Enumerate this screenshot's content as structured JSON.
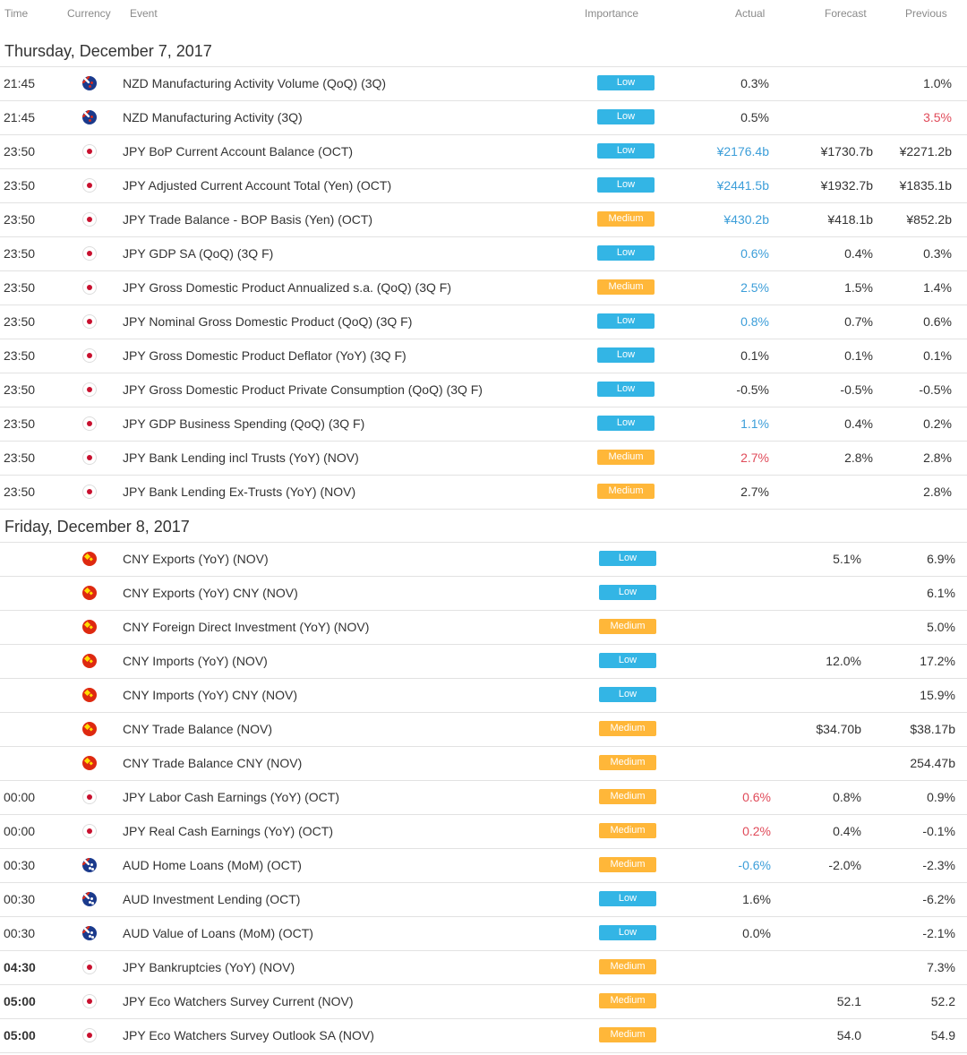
{
  "header": {
    "time": "Time",
    "currency": "Currency",
    "event": "Event",
    "importance": "Importance",
    "actual": "Actual",
    "forecast": "Forecast",
    "previous": "Previous"
  },
  "colors": {
    "low_badge": "#33b5e5",
    "medium_badge": "#ffb739",
    "better_than_forecast": "#3c9ed9",
    "worse_than_forecast": "#e04b5a"
  },
  "days": [
    {
      "label": "Thursday, December 7, 2017",
      "events": [
        {
          "time": "21:45",
          "bold": false,
          "currency": "nzd",
          "flag_icon": "nzd-flag-icon",
          "event": "NZD Manufacturing Activity Volume (QoQ) (3Q)",
          "importance": "Low",
          "actual": "0.3%",
          "actual_color": "",
          "forecast": "",
          "previous": "1.0%",
          "previous_color": ""
        },
        {
          "time": "21:45",
          "bold": false,
          "currency": "nzd",
          "flag_icon": "nzd-flag-icon",
          "event": "NZD Manufacturing Activity (3Q)",
          "importance": "Low",
          "actual": "0.5%",
          "actual_color": "",
          "forecast": "",
          "previous": "3.5%",
          "previous_color": "red"
        },
        {
          "time": "23:50",
          "bold": false,
          "currency": "jpy",
          "flag_icon": "jpy-flag-icon",
          "event": "JPY BoP Current Account Balance (OCT)",
          "importance": "Low",
          "actual": "¥2176.4b",
          "actual_color": "blue",
          "forecast": "¥1730.7b",
          "previous": "¥2271.2b",
          "previous_color": ""
        },
        {
          "time": "23:50",
          "bold": false,
          "currency": "jpy",
          "flag_icon": "jpy-flag-icon",
          "event": "JPY Adjusted Current Account Total (Yen) (OCT)",
          "importance": "Low",
          "actual": "¥2441.5b",
          "actual_color": "blue",
          "forecast": "¥1932.7b",
          "previous": "¥1835.1b",
          "previous_color": ""
        },
        {
          "time": "23:50",
          "bold": false,
          "currency": "jpy",
          "flag_icon": "jpy-flag-icon",
          "event": "JPY Trade Balance - BOP Basis (Yen) (OCT)",
          "importance": "Medium",
          "actual": "¥430.2b",
          "actual_color": "blue",
          "forecast": "¥418.1b",
          "previous": "¥852.2b",
          "previous_color": ""
        },
        {
          "time": "23:50",
          "bold": false,
          "currency": "jpy",
          "flag_icon": "jpy-flag-icon",
          "event": "JPY GDP SA (QoQ) (3Q F)",
          "importance": "Low",
          "actual": "0.6%",
          "actual_color": "blue",
          "forecast": "0.4%",
          "previous": "0.3%",
          "previous_color": ""
        },
        {
          "time": "23:50",
          "bold": false,
          "currency": "jpy",
          "flag_icon": "jpy-flag-icon",
          "event": "JPY Gross Domestic Product Annualized s.a. (QoQ) (3Q F)",
          "importance": "Medium",
          "actual": "2.5%",
          "actual_color": "blue",
          "forecast": "1.5%",
          "previous": "1.4%",
          "previous_color": ""
        },
        {
          "time": "23:50",
          "bold": false,
          "currency": "jpy",
          "flag_icon": "jpy-flag-icon",
          "event": "JPY Nominal Gross Domestic Product (QoQ) (3Q F)",
          "importance": "Low",
          "actual": "0.8%",
          "actual_color": "blue",
          "forecast": "0.7%",
          "previous": "0.6%",
          "previous_color": ""
        },
        {
          "time": "23:50",
          "bold": false,
          "currency": "jpy",
          "flag_icon": "jpy-flag-icon",
          "event": "JPY Gross Domestic Product Deflator (YoY) (3Q F)",
          "importance": "Low",
          "actual": "0.1%",
          "actual_color": "",
          "forecast": "0.1%",
          "previous": "0.1%",
          "previous_color": ""
        },
        {
          "time": "23:50",
          "bold": false,
          "currency": "jpy",
          "flag_icon": "jpy-flag-icon",
          "event": "JPY Gross Domestic Product Private Consumption (QoQ) (3Q F)",
          "importance": "Low",
          "actual": "-0.5%",
          "actual_color": "",
          "forecast": "-0.5%",
          "previous": "-0.5%",
          "previous_color": ""
        },
        {
          "time": "23:50",
          "bold": false,
          "currency": "jpy",
          "flag_icon": "jpy-flag-icon",
          "event": "JPY GDP Business Spending (QoQ) (3Q F)",
          "importance": "Low",
          "actual": "1.1%",
          "actual_color": "blue",
          "forecast": "0.4%",
          "previous": "0.2%",
          "previous_color": ""
        },
        {
          "time": "23:50",
          "bold": false,
          "currency": "jpy",
          "flag_icon": "jpy-flag-icon",
          "event": "JPY Bank Lending incl Trusts (YoY) (NOV)",
          "importance": "Medium",
          "actual": "2.7%",
          "actual_color": "red",
          "forecast": "2.8%",
          "previous": "2.8%",
          "previous_color": ""
        },
        {
          "time": "23:50",
          "bold": false,
          "currency": "jpy",
          "flag_icon": "jpy-flag-icon",
          "event": "JPY Bank Lending Ex-Trusts (YoY) (NOV)",
          "importance": "Medium",
          "actual": "2.7%",
          "actual_color": "",
          "forecast": "",
          "previous": "2.8%",
          "previous_color": ""
        }
      ]
    },
    {
      "label": "Friday, December 8, 2017",
      "events": [
        {
          "time": "",
          "bold": false,
          "currency": "cny",
          "flag_icon": "cny-flag-icon",
          "event": "CNY Exports (YoY) (NOV)",
          "importance": "Low",
          "actual": "",
          "actual_color": "",
          "forecast": "5.1%",
          "previous": "6.9%",
          "previous_color": ""
        },
        {
          "time": "",
          "bold": false,
          "currency": "cny",
          "flag_icon": "cny-flag-icon",
          "event": "CNY Exports (YoY) CNY (NOV)",
          "importance": "Low",
          "actual": "",
          "actual_color": "",
          "forecast": "",
          "previous": "6.1%",
          "previous_color": ""
        },
        {
          "time": "",
          "bold": false,
          "currency": "cny",
          "flag_icon": "cny-flag-icon",
          "event": "CNY Foreign Direct Investment (YoY) (NOV)",
          "importance": "Medium",
          "actual": "",
          "actual_color": "",
          "forecast": "",
          "previous": "5.0%",
          "previous_color": ""
        },
        {
          "time": "",
          "bold": false,
          "currency": "cny",
          "flag_icon": "cny-flag-icon",
          "event": "CNY Imports (YoY) (NOV)",
          "importance": "Low",
          "actual": "",
          "actual_color": "",
          "forecast": "12.0%",
          "previous": "17.2%",
          "previous_color": ""
        },
        {
          "time": "",
          "bold": false,
          "currency": "cny",
          "flag_icon": "cny-flag-icon",
          "event": "CNY Imports (YoY) CNY (NOV)",
          "importance": "Low",
          "actual": "",
          "actual_color": "",
          "forecast": "",
          "previous": "15.9%",
          "previous_color": ""
        },
        {
          "time": "",
          "bold": false,
          "currency": "cny",
          "flag_icon": "cny-flag-icon",
          "event": "CNY Trade Balance (NOV)",
          "importance": "Medium",
          "actual": "",
          "actual_color": "",
          "forecast": "$34.70b",
          "previous": "$38.17b",
          "previous_color": ""
        },
        {
          "time": "",
          "bold": false,
          "currency": "cny",
          "flag_icon": "cny-flag-icon",
          "event": "CNY Trade Balance CNY (NOV)",
          "importance": "Medium",
          "actual": "",
          "actual_color": "",
          "forecast": "",
          "previous": "254.47b",
          "previous_color": ""
        },
        {
          "time": "00:00",
          "bold": false,
          "currency": "jpy",
          "flag_icon": "jpy-flag-icon",
          "event": "JPY Labor Cash Earnings (YoY) (OCT)",
          "importance": "Medium",
          "actual": "0.6%",
          "actual_color": "red",
          "forecast": "0.8%",
          "previous": "0.9%",
          "previous_color": ""
        },
        {
          "time": "00:00",
          "bold": false,
          "currency": "jpy",
          "flag_icon": "jpy-flag-icon",
          "event": "JPY Real Cash Earnings (YoY) (OCT)",
          "importance": "Medium",
          "actual": "0.2%",
          "actual_color": "red",
          "forecast": "0.4%",
          "previous": "-0.1%",
          "previous_color": ""
        },
        {
          "time": "00:30",
          "bold": false,
          "currency": "aud",
          "flag_icon": "aud-flag-icon",
          "event": "AUD Home Loans (MoM) (OCT)",
          "importance": "Medium",
          "actual": "-0.6%",
          "actual_color": "blue",
          "forecast": "-2.0%",
          "previous": "-2.3%",
          "previous_color": ""
        },
        {
          "time": "00:30",
          "bold": false,
          "currency": "aud",
          "flag_icon": "aud-flag-icon",
          "event": "AUD Investment Lending (OCT)",
          "importance": "Low",
          "actual": "1.6%",
          "actual_color": "",
          "forecast": "",
          "previous": "-6.2%",
          "previous_color": ""
        },
        {
          "time": "00:30",
          "bold": false,
          "currency": "aud",
          "flag_icon": "aud-flag-icon",
          "event": "AUD Value of Loans (MoM) (OCT)",
          "importance": "Low",
          "actual": "0.0%",
          "actual_color": "",
          "forecast": "",
          "previous": "-2.1%",
          "previous_color": ""
        },
        {
          "time": "04:30",
          "bold": true,
          "currency": "jpy",
          "flag_icon": "jpy-flag-icon",
          "event": "JPY Bankruptcies (YoY) (NOV)",
          "importance": "Medium",
          "actual": "",
          "actual_color": "",
          "forecast": "",
          "previous": "7.3%",
          "previous_color": ""
        },
        {
          "time": "05:00",
          "bold": true,
          "currency": "jpy",
          "flag_icon": "jpy-flag-icon",
          "event": "JPY Eco Watchers Survey Current (NOV)",
          "importance": "Medium",
          "actual": "",
          "actual_color": "",
          "forecast": "52.1",
          "previous": "52.2",
          "previous_color": ""
        },
        {
          "time": "05:00",
          "bold": true,
          "currency": "jpy",
          "flag_icon": "jpy-flag-icon",
          "event": "JPY Eco Watchers Survey Outlook SA (NOV)",
          "importance": "Medium",
          "actual": "",
          "actual_color": "",
          "forecast": "54.0",
          "previous": "54.9",
          "previous_color": ""
        }
      ]
    }
  ]
}
